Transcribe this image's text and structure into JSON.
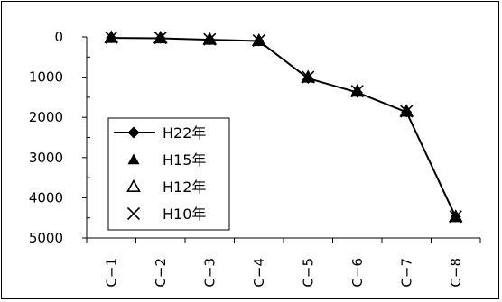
{
  "chart_data": {
    "type": "line",
    "categories": [
      "C−1",
      "C−2",
      "C−3",
      "C−4",
      "C−5",
      "C−6",
      "C−7",
      "C−8"
    ],
    "y_ticks": [
      "0",
      "1000",
      "2000",
      "3000",
      "4000",
      "5000"
    ],
    "ylim": [
      0,
      5000
    ],
    "y_inverted": true,
    "grid": false,
    "legend_position": "bottom-left",
    "title": "",
    "xlabel": "",
    "ylabel": "",
    "series": [
      {
        "name": "H22年",
        "marker": "diamond",
        "line": true,
        "values": [
          25,
          35,
          70,
          100,
          1030,
          1380,
          1870,
          4480
        ]
      },
      {
        "name": "H15年",
        "marker": "triangle-filled",
        "line": false,
        "values": [
          15,
          25,
          60,
          90,
          1000,
          1350,
          1850,
          4470
        ]
      },
      {
        "name": "H12年",
        "marker": "triangle-open",
        "line": false,
        "values": [
          15,
          25,
          60,
          90,
          1000,
          1350,
          1850,
          4470
        ]
      },
      {
        "name": "H10年",
        "marker": "x",
        "line": false,
        "values": [
          15,
          25,
          60,
          90,
          1000,
          1350,
          1850,
          4470
        ]
      }
    ]
  }
}
